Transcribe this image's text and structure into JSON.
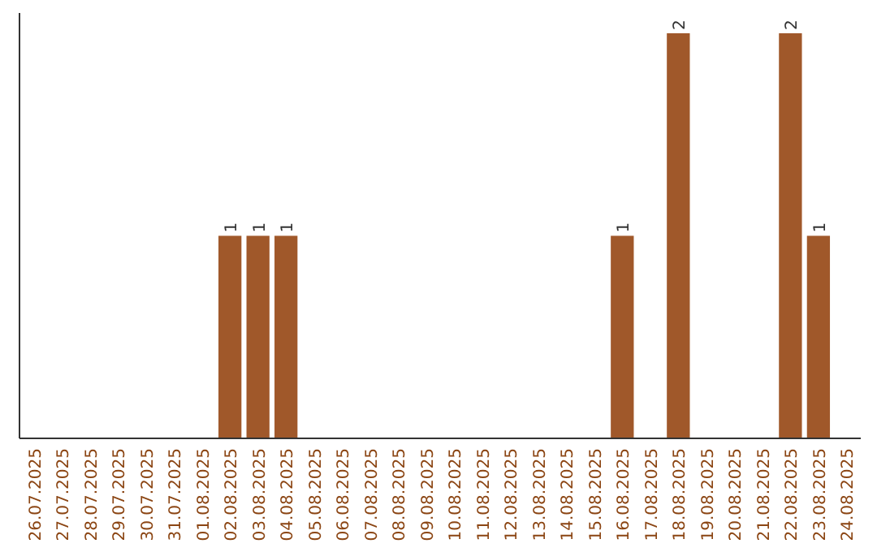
{
  "chart_data": {
    "type": "bar",
    "categories": [
      "26.07.2025",
      "27.07.2025",
      "28.07.2025",
      "29.07.2025",
      "30.07.2025",
      "31.07.2025",
      "01.08.2025",
      "02.08.2025",
      "03.08.2025",
      "04.08.2025",
      "05.08.2025",
      "06.08.2025",
      "07.08.2025",
      "08.08.2025",
      "09.08.2025",
      "10.08.2025",
      "11.08.2025",
      "12.08.2025",
      "13.08.2025",
      "14.08.2025",
      "15.08.2025",
      "16.08.2025",
      "17.08.2025",
      "18.08.2025",
      "19.08.2025",
      "20.08.2025",
      "21.08.2025",
      "22.08.2025",
      "23.08.2025",
      "24.08.2025"
    ],
    "values": [
      0,
      0,
      0,
      0,
      0,
      0,
      0,
      1,
      1,
      1,
      0,
      0,
      0,
      0,
      0,
      0,
      0,
      0,
      0,
      0,
      0,
      1,
      0,
      2,
      0,
      0,
      0,
      2,
      1,
      0
    ],
    "value_labels": [
      null,
      null,
      null,
      null,
      null,
      null,
      null,
      "1",
      "1",
      "1",
      null,
      null,
      null,
      null,
      null,
      null,
      null,
      null,
      null,
      null,
      null,
      "1",
      null,
      "2",
      null,
      null,
      null,
      "2",
      "1",
      null
    ],
    "color": "#a0582a",
    "ylim": [
      0,
      2.1
    ],
    "tick_labels": "x"
  }
}
